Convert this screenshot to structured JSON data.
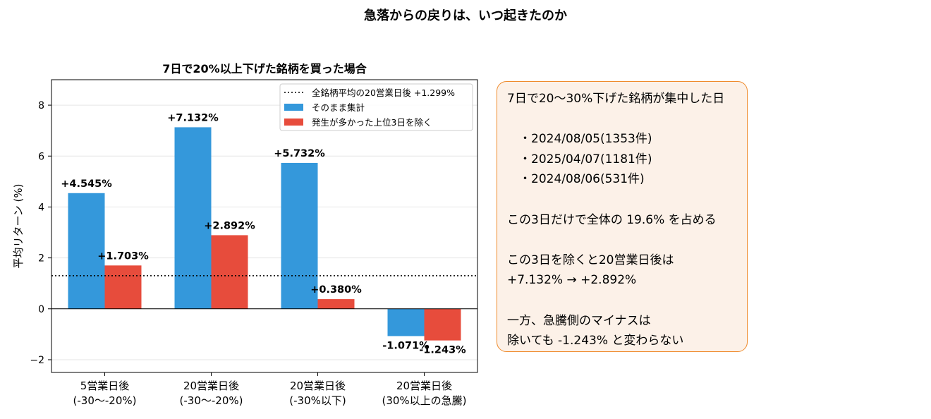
{
  "figure": {
    "suptitle": "急落からの戻りは、いつ起きたのか"
  },
  "chart_data": {
    "type": "bar",
    "title": "7日で20%以上下げた銘柄を買った場合",
    "xlabel": "",
    "ylabel": "平均リターン (%)",
    "categories": [
      [
        "5営業日後",
        "(-30～-20%)"
      ],
      [
        "20営業日後",
        "(-30～-20%)"
      ],
      [
        "20営業日後",
        "(-30%以下)"
      ],
      [
        "20営業日後",
        "(30%以上の急騰)"
      ]
    ],
    "series": [
      {
        "name": "そのまま集計",
        "color": "#3498db",
        "values": [
          4.545,
          7.132,
          5.732,
          -1.071
        ],
        "labels": [
          "+4.545%",
          "+7.132%",
          "+5.732%",
          "-1.071%"
        ]
      },
      {
        "name": "発生が多かった上位3日を除く",
        "color": "#e74c3c",
        "values": [
          1.703,
          2.892,
          0.38,
          -1.243
        ],
        "labels": [
          "+1.703%",
          "+2.892%",
          "+0.380%",
          "-1.243%"
        ]
      }
    ],
    "reference_line": {
      "name": "全銘柄平均の20営業日後 +1.299%",
      "value": 1.299,
      "style": "dotted"
    },
    "ylim": [
      -2.5,
      9
    ],
    "yticks": [
      -2,
      0,
      2,
      4,
      6,
      8
    ],
    "ytick_labels": [
      "−2",
      "0",
      "2",
      "4",
      "6",
      "8"
    ],
    "grid": true,
    "legend": "top-right"
  },
  "note": {
    "lines": [
      "7日で20～30%下げた銘柄が集中した日",
      "",
      "　・2024/08/05(1353件)",
      "　・2025/04/07(1181件)",
      "　・2024/08/06(531件)",
      "",
      "この3日だけで全体の 19.6% を占める",
      "",
      "この3日を除くと20営業日後は",
      "+7.132% → +2.892%",
      "",
      "一方、急騰側のマイナスは",
      "除いても -1.243% と変わらない"
    ],
    "colors": {
      "background": "#fcf1e8",
      "border": "#ef8b2c"
    }
  }
}
